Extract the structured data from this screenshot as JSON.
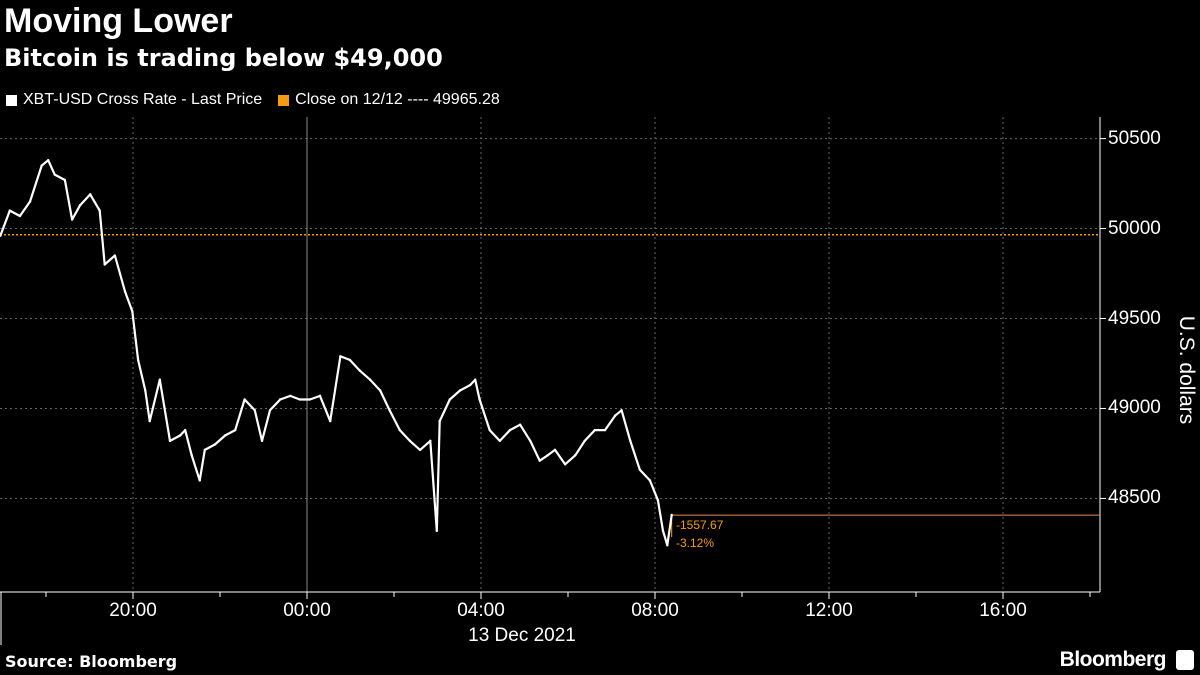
{
  "title": "Moving Lower",
  "subtitle": "Bitcoin is trading below $49,000",
  "source": "Source: Bloomberg",
  "brand": "Bloomberg",
  "chart_data": {
    "type": "line",
    "legend": [
      {
        "name": "XBT-USD Cross Rate - Last Price",
        "color": "#ffffff"
      },
      {
        "name": "Close on 12/12 ---- 49965.28",
        "color": "#f39c12"
      }
    ],
    "legend_placement": "top-left",
    "ylabel": "U.S. dollars",
    "y_axis_side": "right",
    "yticks": [
      48500,
      49000,
      49500,
      50000,
      50500
    ],
    "ylim": [
      47980,
      50620
    ],
    "xticks": [
      "20:00",
      "00:00",
      "04:00",
      "08:00",
      "12:00",
      "16:00"
    ],
    "xlabel": "13 Dec 2021",
    "xlim": [
      "2021-12-12 16:57",
      "2021-12-13 18:15"
    ],
    "grid": true,
    "reference_line": {
      "label": "Close on 12/12",
      "value": 49965.28,
      "color": "#f39c12"
    },
    "annotations": {
      "change": "-1557.67",
      "percent": "-3.12%",
      "last_value": 48407.61
    },
    "series": [
      {
        "color": "#ffffff",
        "x": [
          "2021-12-12 16:57",
          "2021-12-12 17:10",
          "2021-12-12 17:24",
          "2021-12-12 17:38",
          "2021-12-12 17:54",
          "2021-12-12 18:03",
          "2021-12-12 18:12",
          "2021-12-12 18:26",
          "2021-12-12 18:36",
          "2021-12-12 18:47",
          "2021-12-12 19:01",
          "2021-12-12 19:14",
          "2021-12-12 19:21",
          "2021-12-12 19:35",
          "2021-12-12 19:49",
          "2021-12-12 19:59",
          "2021-12-12 20:07",
          "2021-12-12 20:17",
          "2021-12-12 20:23",
          "2021-12-12 20:37",
          "2021-12-12 20:51",
          "2021-12-12 21:05",
          "2021-12-12 21:12",
          "2021-12-12 21:21",
          "2021-12-12 21:32",
          "2021-12-12 21:39",
          "2021-12-12 21:53",
          "2021-12-12 22:07",
          "2021-12-12 22:21",
          "2021-12-12 22:34",
          "2021-12-12 22:48",
          "2021-12-12 22:58",
          "2021-12-12 23:09",
          "2021-12-12 23:23",
          "2021-12-12 23:37",
          "2021-12-12 23:50",
          "2021-12-13 00:04",
          "2021-12-13 00:18",
          "2021-12-13 00:32",
          "2021-12-13 00:46",
          "2021-12-13 00:59",
          "2021-12-13 01:13",
          "2021-12-13 01:27",
          "2021-12-13 01:41",
          "2021-12-13 01:54",
          "2021-12-13 02:08",
          "2021-12-13 02:22",
          "2021-12-13 02:36",
          "2021-12-13 02:50",
          "2021-12-13 02:59",
          "2021-12-13 03:03",
          "2021-12-13 03:17",
          "2021-12-13 03:31",
          "2021-12-13 03:45",
          "2021-12-13 03:52",
          "2021-12-13 03:58",
          "2021-12-13 04:12",
          "2021-12-13 04:26",
          "2021-12-13 04:40",
          "2021-12-13 04:54",
          "2021-12-13 05:08",
          "2021-12-13 05:21",
          "2021-12-13 05:32",
          "2021-12-13 05:42",
          "2021-12-13 05:56",
          "2021-12-13 06:10",
          "2021-12-13 06:23",
          "2021-12-13 06:37",
          "2021-12-13 06:51",
          "2021-12-13 07:05",
          "2021-12-13 07:14",
          "2021-12-13 07:26",
          "2021-12-13 07:39",
          "2021-12-13 07:53",
          "2021-12-13 08:04",
          "2021-12-13 08:11",
          "2021-12-13 08:17",
          "2021-12-13 08:23"
        ],
        "values": [
          49960,
          50100,
          50070,
          50150,
          50350,
          50380,
          50300,
          50270,
          50050,
          50130,
          50190,
          50100,
          49800,
          49850,
          49650,
          49540,
          49270,
          49100,
          48930,
          49160,
          48820,
          48850,
          48880,
          48740,
          48600,
          48770,
          48800,
          48850,
          48880,
          49050,
          48990,
          48820,
          48990,
          49050,
          49070,
          49050,
          49050,
          49070,
          48930,
          49290,
          49270,
          49210,
          49160,
          49100,
          48990,
          48880,
          48820,
          48770,
          48820,
          48320,
          48930,
          49050,
          49100,
          49130,
          49160,
          49050,
          48880,
          48820,
          48880,
          48910,
          48820,
          48710,
          48740,
          48770,
          48690,
          48740,
          48820,
          48880,
          48880,
          48960,
          48990,
          48820,
          48660,
          48600,
          48490,
          48320,
          48240,
          48408
        ]
      }
    ]
  }
}
